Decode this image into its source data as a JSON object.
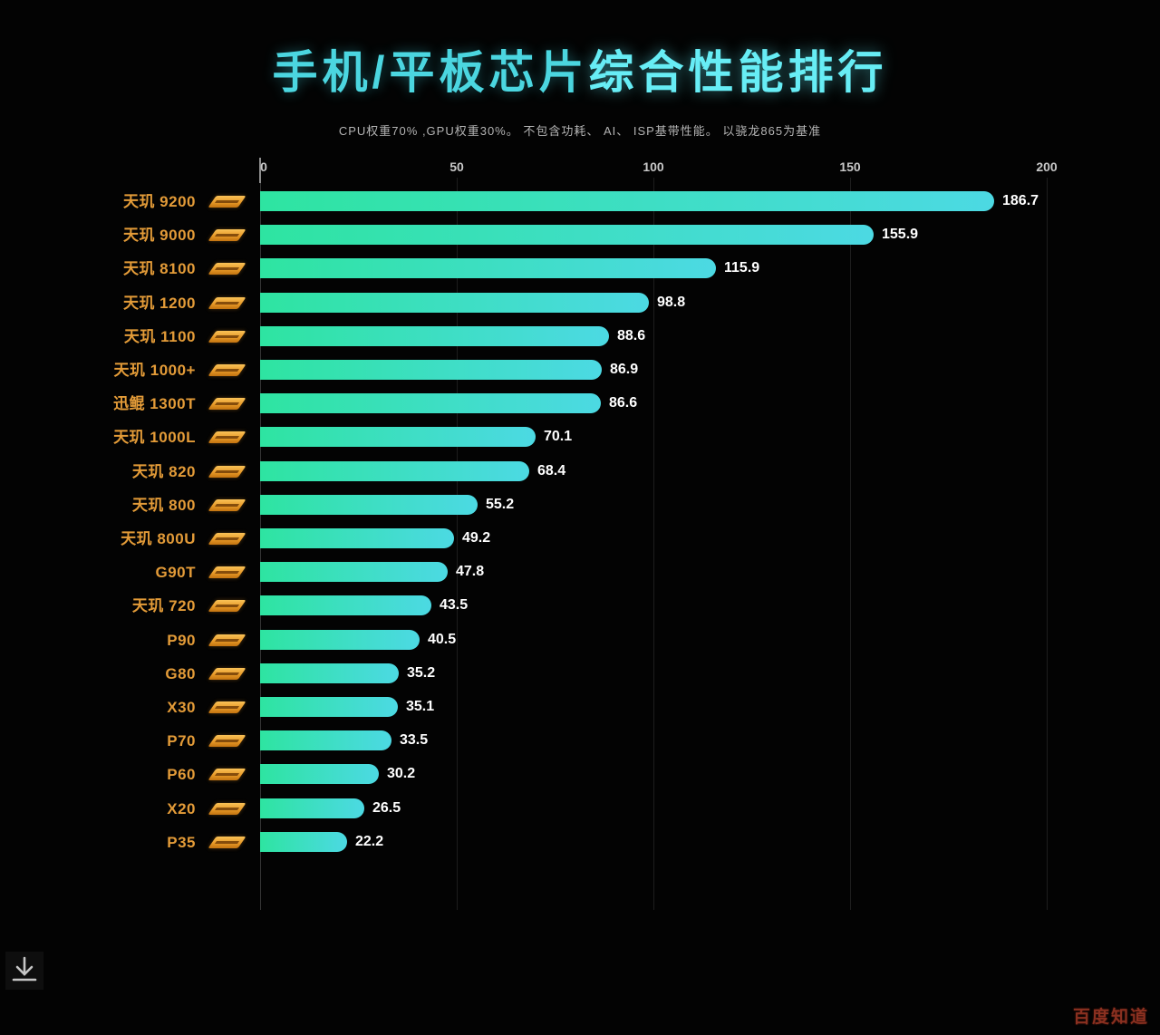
{
  "title": {
    "part1": "手机/平板芯片",
    "part2": "综合性能排行"
  },
  "subtitle": "CPU权重70% ,GPU权重30%。 不包含功耗、 AI、 ISP基带性能。 以骁龙865为基准",
  "colors": {
    "background": "#030303",
    "title_cyan_light": "#4bd6e0",
    "title_cyan_bright": "#67edf5",
    "subtitle_gray": "#b4b4b4",
    "label_orange": "#e39b38",
    "badge_orange": "#e89a28",
    "bar_gradient_start": "#2ee4a1",
    "bar_gradient_end": "#4cd9e3",
    "value_white": "#ffffff",
    "axis_text": "#c9c9c9",
    "gridline": "#1d1d1d",
    "watermark_red": "#8a3020"
  },
  "chart_data": {
    "type": "bar",
    "orientation": "horizontal",
    "title": "手机/平板芯片综合性能排行",
    "subtitle": "CPU权重70% ,GPU权重30%。 不包含功耗、 AI、 ISP基带性能。 以骁龙865为基准",
    "xlabel": "",
    "ylabel": "",
    "xlim": [
      0,
      200
    ],
    "xticks": [
      "0",
      "50",
      "100",
      "150",
      "200"
    ],
    "grid": true,
    "brand_badge": "mediatek-logo",
    "categories": [
      "天玑 9200",
      "天玑 9000",
      "天玑 8100",
      "天玑 1200",
      "天玑 1100",
      "天玑 1000+",
      "迅鲲 1300T",
      "天玑 1000L",
      "天玑 820",
      "天玑 800",
      "天玑 800U",
      "G90T",
      "天玑 720",
      "P90",
      "G80",
      "X30",
      "P70",
      "P60",
      "X20",
      "P35"
    ],
    "values": [
      186.7,
      155.9,
      115.9,
      98.8,
      88.6,
      86.9,
      86.6,
      70.1,
      68.4,
      55.2,
      49.2,
      47.8,
      43.5,
      40.5,
      35.2,
      35.1,
      33.5,
      30.2,
      26.5,
      22.2
    ]
  },
  "footer": {
    "download_icon": "download-arrow",
    "watermark": "百度知道"
  }
}
